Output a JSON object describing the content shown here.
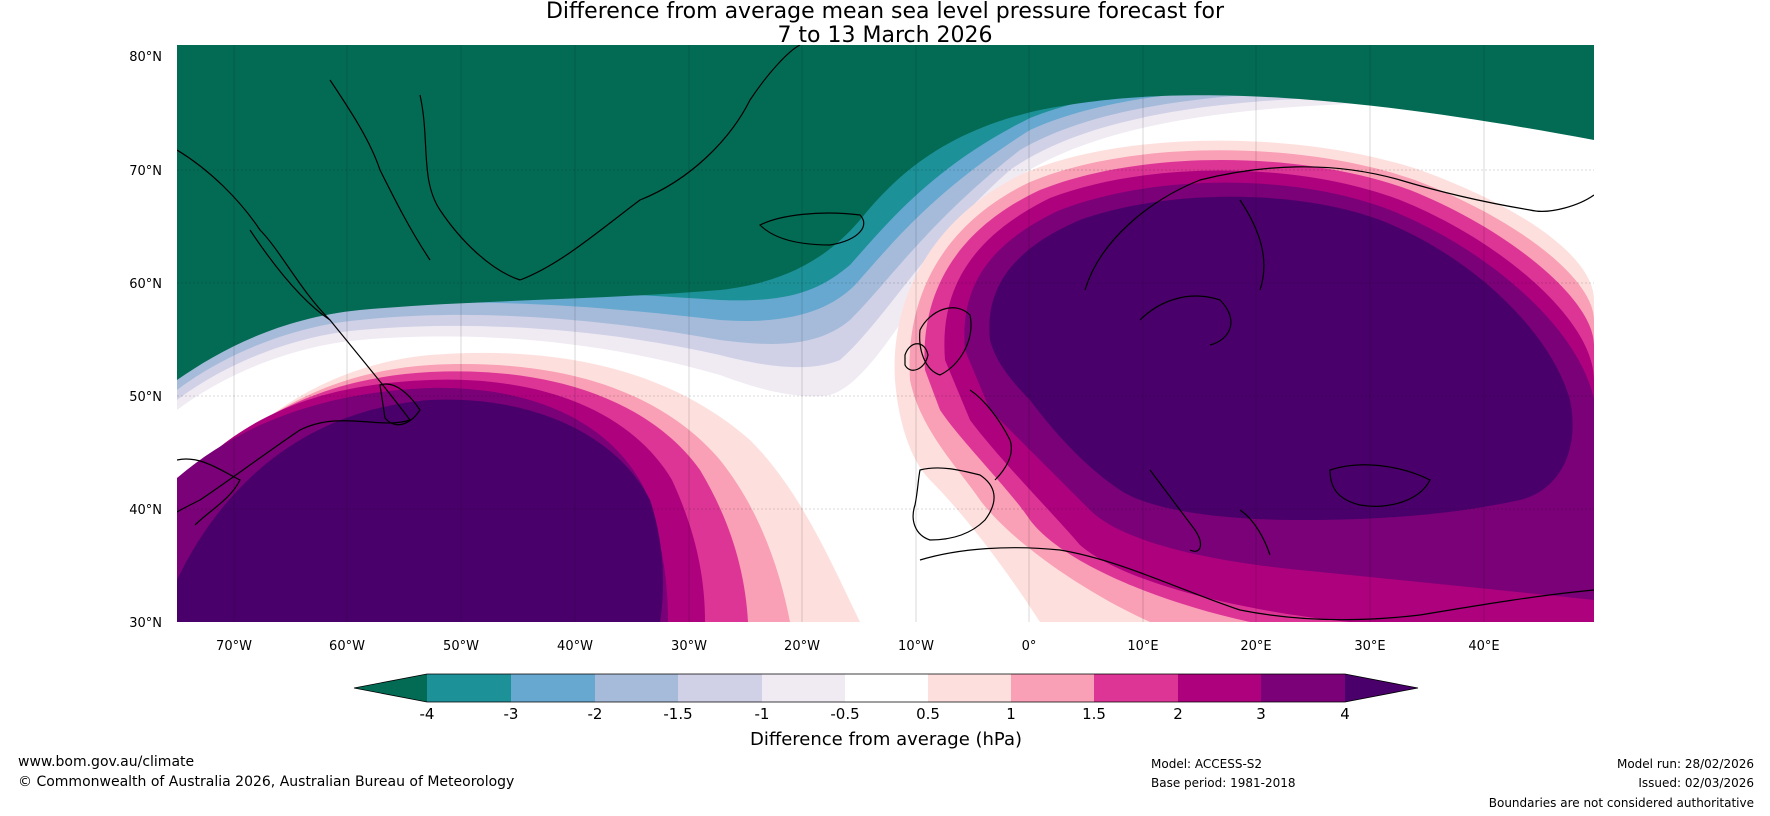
{
  "title_line1": "Difference from average mean sea level pressure forecast for",
  "title_line2": "7 to 13 March 2026",
  "lat_labels": [
    "80°N",
    "70°N",
    "60°N",
    "50°N",
    "40°N",
    "30°N"
  ],
  "lon_labels": [
    "70°W",
    "60°W",
    "50°W",
    "40°W",
    "30°W",
    "20°W",
    "10°W",
    "0°",
    "10°E",
    "20°E",
    "30°E",
    "40°E"
  ],
  "colorbar": {
    "label": "Difference from average (hPa)",
    "ticks": [
      "-4",
      "-3",
      "-2",
      "-1.5",
      "-1",
      "-0.5",
      "0.5",
      "1",
      "1.5",
      "2",
      "3",
      "4"
    ],
    "colors": {
      "lt_-4": "#036b54",
      "-4_-3": "#1d9198",
      "-3_-2": "#66a8cf",
      "-2_-1.5": "#a6bbda",
      "-1.5_-1": "#d0d1e6",
      "-1_-0.5": "#f0eaf3",
      "-0.5_0.5": "#ffffff",
      "0.5_1": "#fde0dd",
      "1_1.5": "#f99fb6",
      "1.5_2": "#dd3596",
      "2_3": "#ae017e",
      "3_4": "#7a0177",
      "gt_4": "#49006a"
    }
  },
  "footer": {
    "website": "www.bom.gov.au/climate",
    "copyright": "© Commonwealth of Australia 2026, Australian Bureau of Meteorology",
    "model": "Model: ACCESS-S2",
    "base_period": "Base period: 1981-2018",
    "model_run": "Model run: 28/02/2026",
    "issued": "Issued: 02/03/2026",
    "disclaimer": "Boundaries are not considered authoritative"
  }
}
